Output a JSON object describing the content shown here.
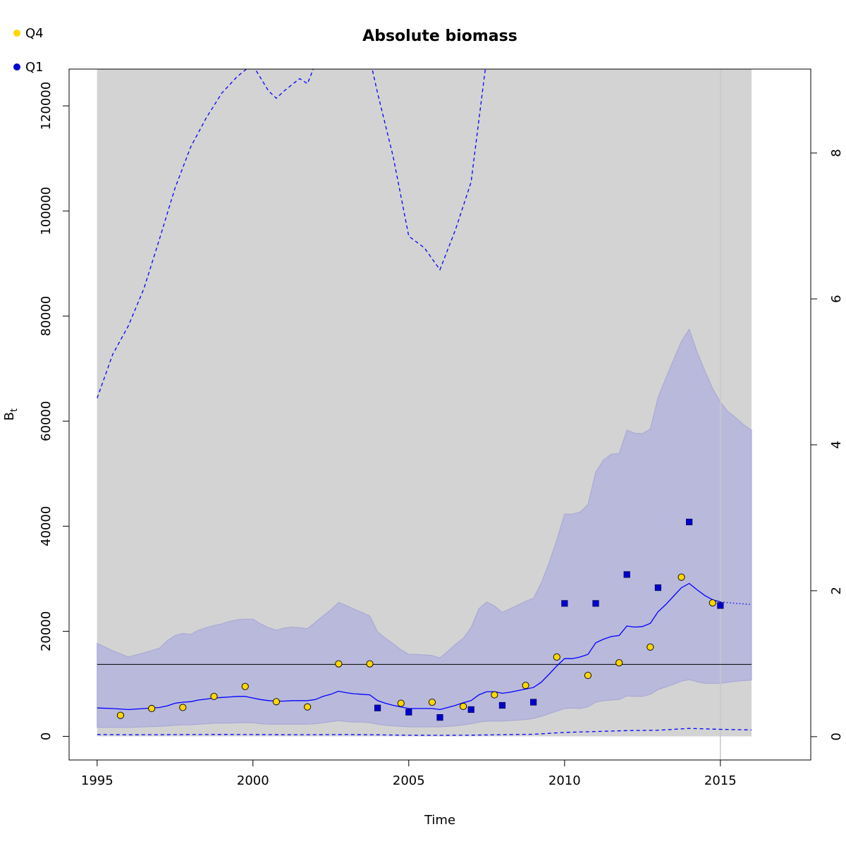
{
  "chart_data": {
    "type": "line",
    "title": "Absolute biomass",
    "xlabel": "Time",
    "ylabel": "B",
    "ylabel_sub": "t",
    "xlim": [
      1994.1,
      2017.9
    ],
    "ylim": [
      -4500,
      127000
    ],
    "y2lim": [
      -0.32,
      9.15
    ],
    "xticks": [
      1995,
      2000,
      2005,
      2010,
      2015
    ],
    "yticks": [
      0,
      20000,
      40000,
      60000,
      80000,
      100000,
      120000
    ],
    "y2ticks": [
      0,
      2,
      4,
      6,
      8
    ],
    "colors": {
      "background_band": "#d3d3d3",
      "ci_fill": "#b9b9dc",
      "ci_edge": "#a5a5d6",
      "line": "#0000ff",
      "q4_marker": "#ffd700",
      "q1_marker": "#0000cd",
      "reference_line": "#000000",
      "vline": "#c8c8c8"
    },
    "legend": {
      "position": "top-left",
      "entries": [
        {
          "label": "Q4",
          "color": "#ffd700"
        },
        {
          "label": "Q1",
          "color": "#0000cd"
        }
      ]
    },
    "gray_band_x": [
      1995,
      2016
    ],
    "reference_line_y": 13700,
    "vertical_line_x": 2015,
    "ci_x": [
      1995,
      1995.5,
      1996,
      1996.5,
      1997,
      1997.25,
      1997.5,
      1997.75,
      1998,
      1998.25,
      1998.5,
      1998.75,
      1999,
      1999.25,
      1999.5,
      1999.75,
      2000,
      2000.25,
      2000.5,
      2000.75,
      2001,
      2001.25,
      2001.5,
      2001.75,
      2002,
      2002.25,
      2002.5,
      2002.75,
      2003,
      2003.25,
      2003.5,
      2003.75,
      2004,
      2004.25,
      2004.5,
      2004.75,
      2005,
      2005.25,
      2005.5,
      2005.75,
      2006,
      2006.25,
      2006.5,
      2006.75,
      2007,
      2007.25,
      2007.5,
      2007.75,
      2008,
      2008.25,
      2008.5,
      2008.75,
      2009,
      2009.25,
      2009.5,
      2009.75,
      2010,
      2010.25,
      2010.5,
      2010.75,
      2011,
      2011.25,
      2011.5,
      2011.75,
      2012,
      2012.25,
      2012.5,
      2012.75,
      2013,
      2013.25,
      2013.5,
      2013.75,
      2014,
      2014.25,
      2014.5,
      2014.75,
      2015,
      2015.25,
      2015.5,
      2015.75,
      2016
    ],
    "ci_upper": [
      17700,
      16300,
      15100,
      15900,
      16800,
      18200,
      19200,
      19600,
      19400,
      20200,
      20700,
      21100,
      21400,
      21900,
      22200,
      22300,
      22300,
      21400,
      20700,
      20200,
      20600,
      20800,
      20700,
      20500,
      21700,
      22900,
      24100,
      25500,
      24900,
      24200,
      23600,
      22900,
      19900,
      18700,
      17600,
      16500,
      15600,
      15600,
      15500,
      15400,
      14900,
      16200,
      17500,
      18700,
      20700,
      24300,
      25600,
      24800,
      23600,
      24300,
      25000,
      25700,
      26300,
      29200,
      33000,
      37400,
      42300,
      42300,
      42700,
      44100,
      50300,
      52600,
      53700,
      53800,
      58300,
      57700,
      57600,
      58500,
      64500,
      68200,
      71700,
      75200,
      77500,
      73200,
      69600,
      66200,
      63600,
      61800,
      60600,
      59300,
      58300
    ],
    "ci_lower": [
      1700,
      1700,
      1700,
      1800,
      1900,
      2000,
      2100,
      2200,
      2200,
      2300,
      2400,
      2500,
      2500,
      2500,
      2600,
      2600,
      2600,
      2400,
      2300,
      2300,
      2300,
      2300,
      2300,
      2300,
      2400,
      2600,
      2800,
      3000,
      2800,
      2700,
      2700,
      2600,
      2300,
      2100,
      2000,
      1900,
      1800,
      1800,
      1800,
      1800,
      1800,
      1900,
      2000,
      2200,
      2400,
      2700,
      2900,
      2900,
      2900,
      3000,
      3100,
      3200,
      3400,
      3800,
      4300,
      4800,
      5300,
      5400,
      5300,
      5600,
      6500,
      6800,
      6900,
      7000,
      7700,
      7600,
      7600,
      8000,
      8900,
      9400,
      9900,
      10500,
      10800,
      10400,
      10100,
      10100,
      10100,
      10300,
      10500,
      10600,
      10700
    ],
    "estimate": [
      5400,
      5300,
      5100,
      5300,
      5500,
      5800,
      6300,
      6500,
      6600,
      6900,
      7100,
      7300,
      7400,
      7500,
      7600,
      7600,
      7300,
      7000,
      6800,
      6700,
      6700,
      6800,
      6800,
      6800,
      7000,
      7600,
      8000,
      8600,
      8300,
      8100,
      8000,
      7900,
      6800,
      6300,
      5900,
      5600,
      5300,
      5300,
      5300,
      5300,
      5100,
      5500,
      5900,
      6400,
      6800,
      7900,
      8500,
      8500,
      8200,
      8400,
      8700,
      9000,
      9300,
      10300,
      11800,
      13400,
      14800,
      14800,
      15100,
      15600,
      17800,
      18500,
      19000,
      19200,
      21000,
      20800,
      20900,
      21500,
      23700,
      25100,
      26700,
      28300,
      29100,
      27900,
      26800,
      26000,
      25600
    ],
    "projection_x": [
      2015,
      2015.5,
      2016
    ],
    "projection_y": [
      25600,
      25300,
      25100
    ],
    "upper_dashed_segments": [
      {
        "x": [
          1995,
          1995.5,
          1996,
          1996.5,
          1997,
          1997.5,
          1998,
          1998.5,
          1999,
          1999.5,
          2000
        ],
        "y2": [
          4.64,
          5.24,
          5.63,
          6.14,
          6.82,
          7.52,
          8.08,
          8.48,
          8.82,
          9.05,
          9.22
        ]
      },
      {
        "x": [
          2000,
          2000.5,
          2000.75,
          2001,
          2001.5,
          2001.75,
          2002
        ],
        "y2": [
          9.2,
          8.85,
          8.75,
          8.85,
          9.02,
          8.95,
          9.22
        ]
      },
      {
        "x": [
          2003.75,
          2004,
          2004.5,
          2005,
          2005.5,
          2006,
          2006.5,
          2007,
          2007.5
        ],
        "y2": [
          9.3,
          8.82,
          7.95,
          6.86,
          6.7,
          6.4,
          6.95,
          7.6,
          9.3
        ]
      }
    ],
    "lower_dashed": {
      "x": [
        1995,
        1996,
        1997,
        1998,
        1999,
        2000,
        2001,
        2002,
        2003,
        2004,
        2005,
        2006,
        2007,
        2008,
        2009,
        2010,
        2011,
        2012,
        2013,
        2014,
        2015,
        2016
      ],
      "y2": [
        0.029,
        0.026,
        0.027,
        0.029,
        0.03,
        0.029,
        0.027,
        0.027,
        0.029,
        0.025,
        0.019,
        0.018,
        0.02,
        0.027,
        0.033,
        0.058,
        0.07,
        0.083,
        0.088,
        0.113,
        0.1,
        0.092
      ]
    },
    "series": [
      {
        "name": "Q4",
        "marker": "circle",
        "x": [
          1995.75,
          1996.75,
          1997.75,
          1998.75,
          1999.75,
          2000.75,
          2001.75,
          2002.75,
          2003.75,
          2004.75,
          2005.75,
          2006.75,
          2007.75,
          2008.75,
          2009.75,
          2010.75,
          2011.75,
          2012.75,
          2013.75,
          2014.75
        ],
        "y": [
          4000,
          5300,
          5500,
          7600,
          9500,
          6600,
          5600,
          13800,
          13800,
          6300,
          6500,
          5700,
          7900,
          9700,
          15100,
          11600,
          14000,
          17000,
          30300,
          25400
        ]
      },
      {
        "name": "Q1",
        "marker": "square",
        "x": [
          2004,
          2005,
          2006,
          2007,
          2008,
          2009,
          2010,
          2011,
          2012,
          2013,
          2014,
          2015
        ],
        "y": [
          5400,
          4600,
          3600,
          5100,
          5900,
          6500,
          25300,
          25300,
          30800,
          28300,
          40800,
          24900
        ]
      }
    ]
  }
}
